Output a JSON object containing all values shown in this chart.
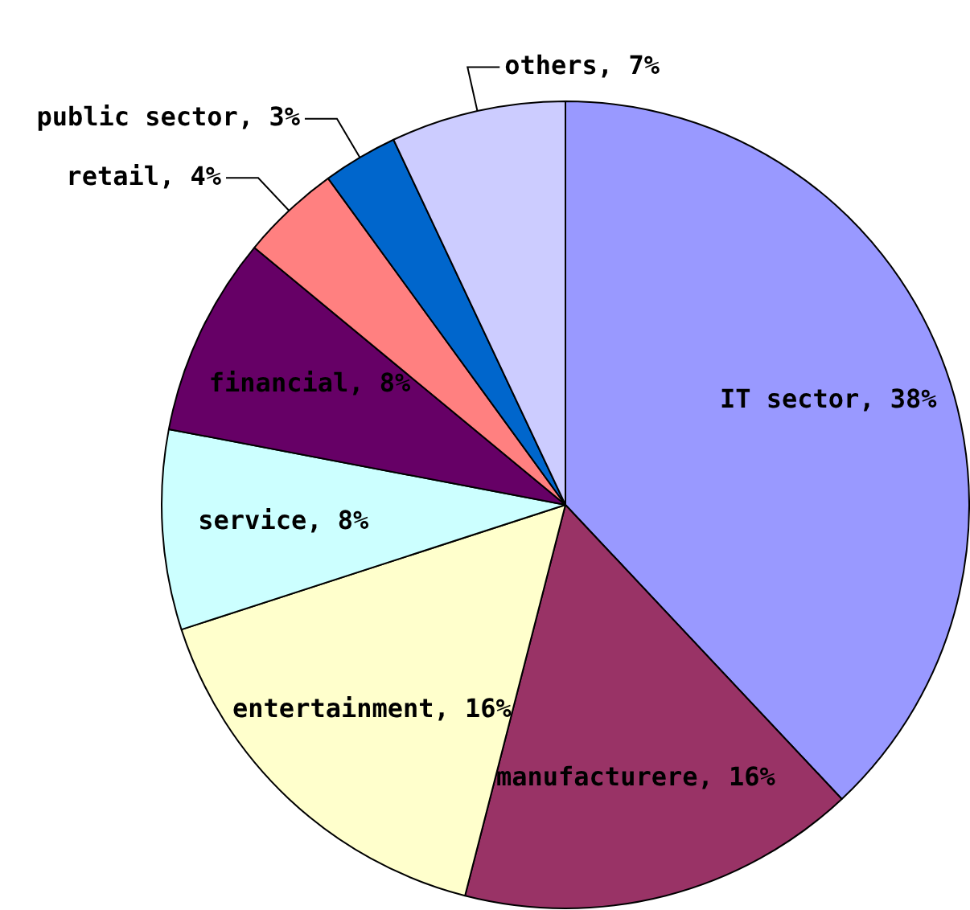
{
  "chart_data": {
    "type": "pie",
    "categories": [
      "IT sector",
      "manufacturere",
      "entertainment",
      "service",
      "financial",
      "retail",
      "public sector",
      "others"
    ],
    "values": [
      38,
      16,
      16,
      8,
      8,
      4,
      3,
      7
    ],
    "colors": [
      "#9999ff",
      "#993366",
      "#ffffcc",
      "#ccffff",
      "#660066",
      "#ff8080",
      "#0066cc",
      "#ccccff"
    ],
    "value_labels": [
      "38%",
      "16%",
      "16%",
      "8%",
      "8%",
      "4%",
      "3%",
      "7%"
    ],
    "legend": false
  }
}
